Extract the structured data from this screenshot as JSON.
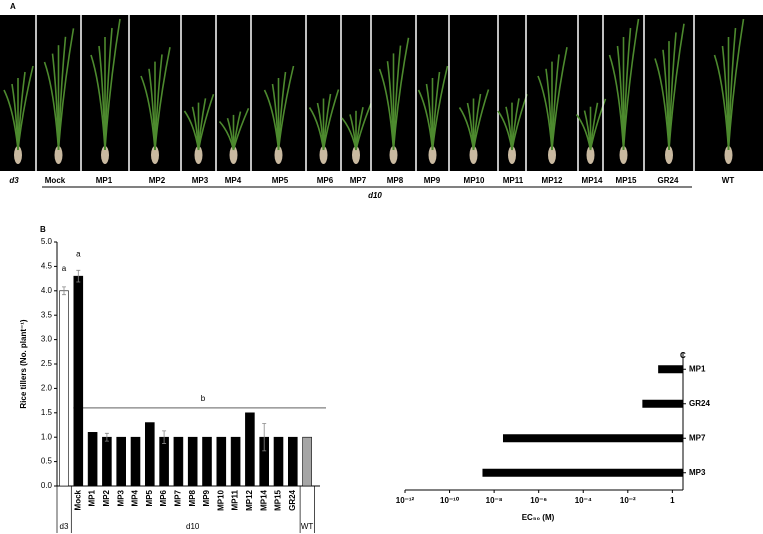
{
  "photo_panel": {
    "panel": "A",
    "labels": [
      "d3",
      "Mock",
      "MP1",
      "MP2",
      "MP3",
      "MP4",
      "MP5",
      "MP6",
      "MP7",
      "MP8",
      "MP9",
      "MP10",
      "MP11",
      "MP12",
      "MP14",
      "MP15",
      "GR24",
      "WT"
    ],
    "group_label": "d10"
  },
  "chart_data": [
    {
      "type": "bar",
      "panel": "B",
      "y_label": "Rice tillers (No. plant⁻¹)",
      "categories": [
        null,
        "Mock",
        "MP1",
        "MP2",
        "MP3",
        "MP4",
        "MP5",
        "MP6",
        "MP7",
        "MP8",
        "MP9",
        "MP10",
        "MP11",
        "MP12",
        "MP14",
        "MP15",
        "GR24",
        null
      ],
      "groups": [
        "d3",
        "d10",
        "WT"
      ],
      "values": [
        4.0,
        4.3,
        1.1,
        1.0,
        1.0,
        1.0,
        1.3,
        1.0,
        1.0,
        1.0,
        1.0,
        1.0,
        1.0,
        1.5,
        1.0,
        1.0,
        1.0,
        1.0
      ],
      "errors": [
        0.08,
        0.12,
        null,
        0.08,
        null,
        null,
        null,
        0.13,
        null,
        null,
        null,
        null,
        null,
        null,
        0.28,
        null,
        null,
        null
      ],
      "colors": [
        "#ffffff",
        "#000000",
        "#000000",
        "#000000",
        "#000000",
        "#000000",
        "#000000",
        "#000000",
        "#000000",
        "#000000",
        "#000000",
        "#000000",
        "#000000",
        "#000000",
        "#000000",
        "#000000",
        "#000000",
        "#a6a6a6"
      ],
      "annotations": [
        "a",
        "a",
        "b"
      ],
      "ylim": [
        0,
        5
      ],
      "yticks": [
        {
          "value": 0,
          "label": "0.0"
        },
        {
          "value": 0.5,
          "label": "0.5"
        },
        {
          "value": 1,
          "label": "1.0"
        },
        {
          "value": 1.5,
          "label": "1.5"
        },
        {
          "value": 2,
          "label": "2.0"
        },
        {
          "value": 2.5,
          "label": "2.5"
        },
        {
          "value": 3,
          "label": "3.0"
        },
        {
          "value": 3.5,
          "label": "3.5"
        },
        {
          "value": 4,
          "label": "4.0"
        },
        {
          "value": 4.5,
          "label": "4.5"
        },
        {
          "value": 5,
          "label": "5.0"
        }
      ]
    },
    {
      "type": "hbar",
      "panel": "C",
      "x_label": "EC₅₀ (M)",
      "categories": [
        "MP1",
        "GR24",
        "MP7",
        "MP3"
      ],
      "values": [
        0.23,
        0.045,
        2.5e-08,
        3e-09
      ],
      "color": "#000000",
      "log_x": true,
      "xlim": [
        1e-12,
        3
      ],
      "xticks": [
        {
          "value": 1e-12,
          "label": "10⁻¹²"
        },
        {
          "value": 1e-10,
          "label": "10⁻¹⁰"
        },
        {
          "value": 1e-08,
          "label": "10⁻⁸"
        },
        {
          "value": 1e-06,
          "label": "10⁻⁶"
        },
        {
          "value": 0.0001,
          "label": "10⁻⁴"
        },
        {
          "value": 0.01,
          "label": "10⁻²"
        },
        1
      ]
    }
  ]
}
